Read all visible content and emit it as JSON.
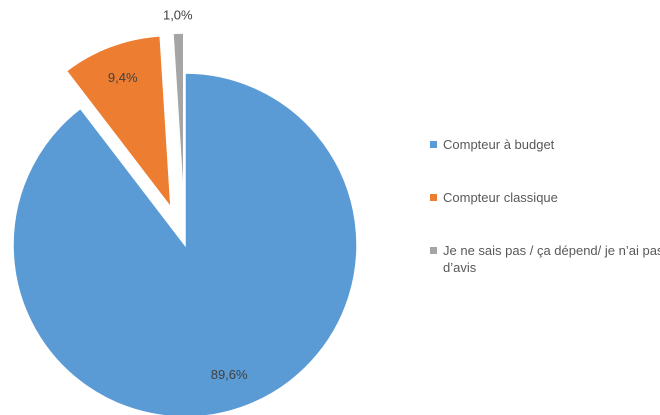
{
  "chart_data": {
    "type": "pie",
    "categories": [
      "Compteur à budget",
      "Compteur classique",
      "Je ne sais pas / ça dépend/ je n’ai pas d’avis"
    ],
    "values": [
      89.6,
      9.4,
      1.0
    ],
    "value_labels": [
      "89,6%",
      "9,4%",
      "1,0%"
    ],
    "colors": [
      "#5b9bd5",
      "#ed7d31",
      "#a5a5a5"
    ],
    "legend": "right"
  }
}
